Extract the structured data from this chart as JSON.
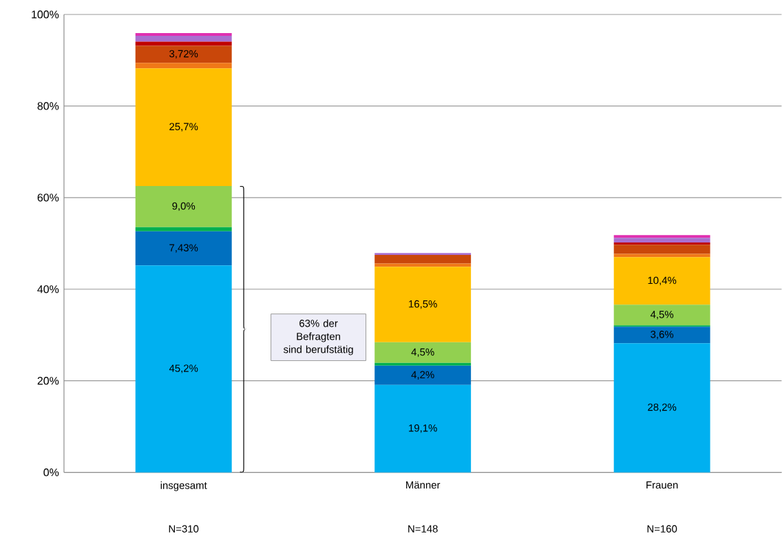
{
  "chart_data": {
    "type": "bar",
    "stacked": true,
    "categories": [
      "insgesamt",
      "Männer",
      "Frauen"
    ],
    "series": [
      {
        "color": "#00b0f0",
        "values": [
          45.2,
          19.1,
          28.2
        ],
        "value_labels": [
          "45,2%",
          "19,1%",
          "28,2%"
        ]
      },
      {
        "color": "#0070c0",
        "values": [
          7.43,
          4.2,
          3.6
        ],
        "value_labels": [
          "7,43%",
          "4,2%",
          "3,6%"
        ]
      },
      {
        "color": "#00b050",
        "values": [
          0.9,
          0.6,
          0.3
        ]
      },
      {
        "color": "#92d050",
        "values": [
          9.0,
          4.5,
          4.5
        ],
        "value_labels": [
          "9,0%",
          "4,5%",
          "4,5%"
        ]
      },
      {
        "color": "#ffc000",
        "values": [
          25.7,
          16.5,
          10.4
        ],
        "value_labels": [
          "25,7%",
          "16,5%",
          "10,4%"
        ]
      },
      {
        "color": "#f07818",
        "values": [
          1.2,
          0.7,
          0.7
        ]
      },
      {
        "color": "#c9470a",
        "values": [
          3.72,
          1.9,
          2.0
        ],
        "value_labels": [
          "3,72%",
          null,
          null
        ]
      },
      {
        "color": "#c00000",
        "values": [
          0.9,
          0,
          0.5
        ]
      },
      {
        "color": "#a970d0",
        "values": [
          1.3,
          0.4,
          1.0
        ]
      },
      {
        "color": "#e030b0",
        "values": [
          0.6,
          0,
          0.6
        ]
      }
    ],
    "ylim": [
      0,
      100
    ],
    "yticks": [
      {
        "value": 0,
        "label": "0%"
      },
      {
        "value": 20,
        "label": "20%"
      },
      {
        "value": 40,
        "label": "40%"
      },
      {
        "value": 60,
        "label": "60%"
      },
      {
        "value": 80,
        "label": "80%"
      },
      {
        "value": 100,
        "label": "100%"
      }
    ],
    "grid": "y",
    "annotations": [
      "63% der Befragten sind berufstätig",
      "N=310",
      "N=148",
      "N=160"
    ]
  }
}
